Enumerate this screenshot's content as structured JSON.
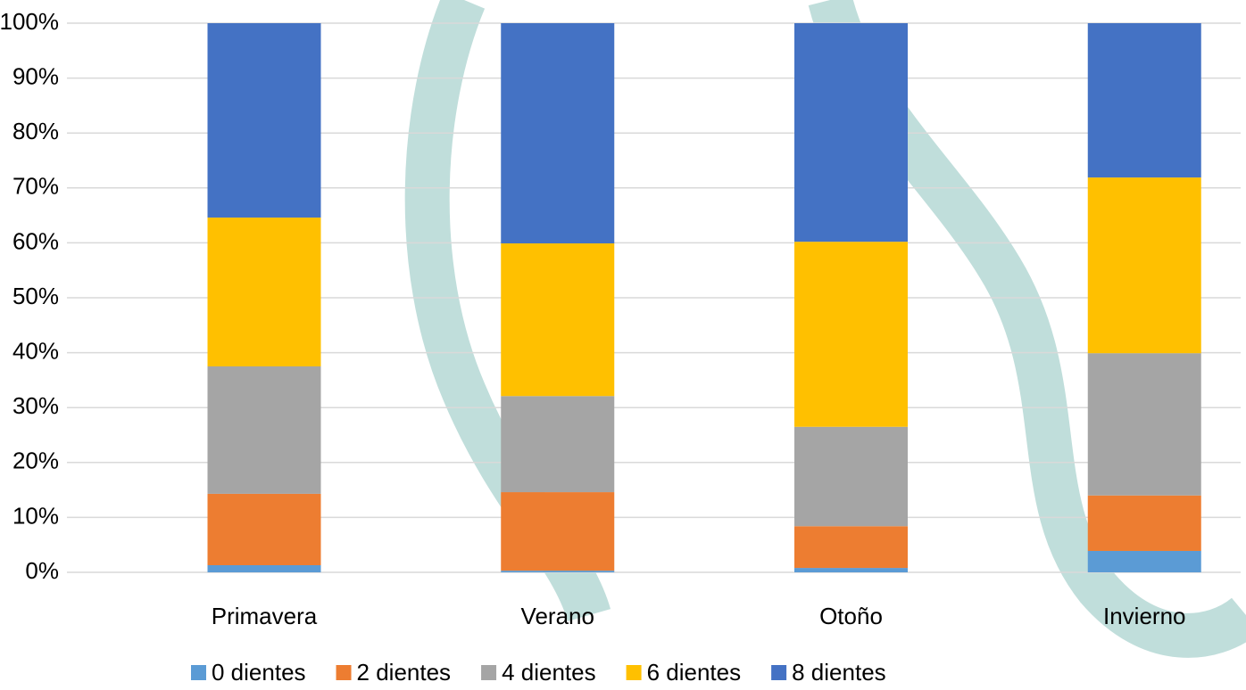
{
  "chart_data": {
    "type": "stacked_bar",
    "categories": [
      "Primavera",
      "Verano",
      "Otoño",
      "Invierno"
    ],
    "series": [
      {
        "name": "0 dientes",
        "color": "#5b9bd5",
        "values": [
          1.3,
          0.3,
          0.8,
          3.9
        ]
      },
      {
        "name": "2 dientes",
        "color": "#ed7d31",
        "values": [
          13.0,
          14.3,
          7.6,
          10.1
        ]
      },
      {
        "name": "4 dientes",
        "color": "#a5a5a5",
        "values": [
          23.2,
          17.5,
          18.1,
          25.9
        ]
      },
      {
        "name": "6 dientes",
        "color": "#ffc000",
        "values": [
          27.1,
          27.8,
          33.7,
          32.0
        ]
      },
      {
        "name": "8 dientes",
        "color": "#4472c4",
        "values": [
          35.4,
          40.1,
          39.8,
          28.1
        ]
      }
    ],
    "ylim": [
      0,
      100
    ],
    "yticks": [
      {
        "value": 0,
        "label": "0%"
      },
      {
        "value": 10,
        "label": "10%"
      },
      {
        "value": 20,
        "label": "20%"
      },
      {
        "value": 30,
        "label": "30%"
      },
      {
        "value": 40,
        "label": "40%"
      },
      {
        "value": 50,
        "label": "50%"
      },
      {
        "value": 60,
        "label": "60%"
      },
      {
        "value": 70,
        "label": "70%"
      },
      {
        "value": 80,
        "label": "80%"
      },
      {
        "value": 90,
        "label": "90%"
      },
      {
        "value": 100,
        "label": "100%"
      }
    ],
    "grid": true,
    "legend": "bottom"
  }
}
